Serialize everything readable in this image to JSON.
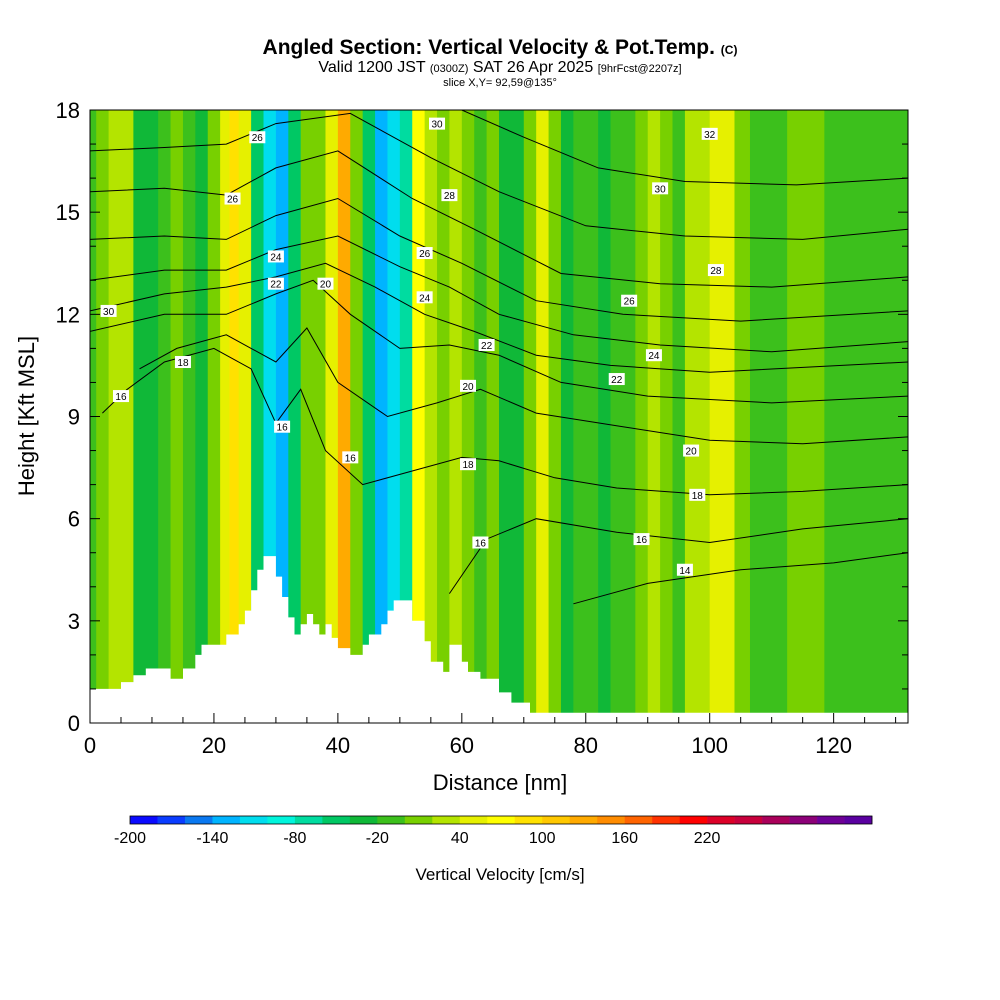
{
  "chart_data": {
    "type": "heatmap",
    "title": "Angled Section: Vertical Velocity & Pot.Temp.",
    "title_mark": "(C)",
    "subtitle_parts": [
      "Valid 1200 JST",
      "(0300Z)",
      "SAT 26 Apr 2025",
      "[9hrFcst@2207z]"
    ],
    "slice_label": "slice X,Y= 92,59@135°",
    "xlabel": "Distance [nm]",
    "ylabel": "Height [Kft MSL]",
    "xlim": [
      0,
      132
    ],
    "ylim": [
      0,
      18
    ],
    "x_ticks": [
      "0",
      "20",
      "40",
      "60",
      "80",
      "100",
      "120"
    ],
    "y_ticks": [
      "0",
      "3",
      "6",
      "9",
      "12",
      "15",
      "18"
    ],
    "colorbar": {
      "label": "Vertical Velocity [cm/s]",
      "tick_labels": [
        "-200",
        "-140",
        "-80",
        "-20",
        "40",
        "100",
        "160",
        "220"
      ],
      "colors": [
        "#0a0aff",
        "#0a3cff",
        "#0a78f0",
        "#00b4ff",
        "#00ddee",
        "#00f5dc",
        "#00dca0",
        "#00c864",
        "#10b838",
        "#3cc01c",
        "#78d000",
        "#b4e400",
        "#e6f000",
        "#ffff00",
        "#ffe100",
        "#ffc800",
        "#ffaa00",
        "#ff8c00",
        "#ff6400",
        "#ff3200",
        "#ff0000",
        "#dc0028",
        "#c8003c",
        "#aa005a",
        "#8c0078",
        "#6e0096",
        "#5a00a0"
      ]
    },
    "vertical_velocity_bands": [
      {
        "x": 0,
        "v": -10
      },
      {
        "x": 2,
        "v": 0
      },
      {
        "x": 4,
        "v": 20
      },
      {
        "x": 6,
        "v": 30
      },
      {
        "x": 8,
        "v": -30
      },
      {
        "x": 10,
        "v": -40
      },
      {
        "x": 12,
        "v": -20
      },
      {
        "x": 14,
        "v": 0
      },
      {
        "x": 16,
        "v": -10
      },
      {
        "x": 18,
        "v": -30
      },
      {
        "x": 20,
        "v": 10
      },
      {
        "x": 22,
        "v": 50
      },
      {
        "x": 23,
        "v": 90
      },
      {
        "x": 25,
        "v": 40
      },
      {
        "x": 27,
        "v": -50
      },
      {
        "x": 29,
        "v": -110
      },
      {
        "x": 31,
        "v": -130
      },
      {
        "x": 33,
        "v": -60
      },
      {
        "x": 35,
        "v": 10
      },
      {
        "x": 37,
        "v": 0
      },
      {
        "x": 39,
        "v": 40
      },
      {
        "x": 41,
        "v": 120
      },
      {
        "x": 43,
        "v": 10
      },
      {
        "x": 45,
        "v": -60
      },
      {
        "x": 47,
        "v": -130
      },
      {
        "x": 49,
        "v": -120
      },
      {
        "x": 51,
        "v": -70
      },
      {
        "x": 53,
        "v": 60
      },
      {
        "x": 55,
        "v": 30
      },
      {
        "x": 57,
        "v": 0
      },
      {
        "x": 59,
        "v": 30
      },
      {
        "x": 61,
        "v": 10
      },
      {
        "x": 63,
        "v": -10
      },
      {
        "x": 65,
        "v": 0
      },
      {
        "x": 67,
        "v": -30
      },
      {
        "x": 69,
        "v": -40
      },
      {
        "x": 71,
        "v": 10
      },
      {
        "x": 73,
        "v": 40
      },
      {
        "x": 75,
        "v": 0
      },
      {
        "x": 77,
        "v": -30
      },
      {
        "x": 79,
        "v": -20
      },
      {
        "x": 81,
        "v": -10
      },
      {
        "x": 83,
        "v": -30
      },
      {
        "x": 85,
        "v": -10
      },
      {
        "x": 87,
        "v": -20
      },
      {
        "x": 89,
        "v": 0
      },
      {
        "x": 91,
        "v": 20
      },
      {
        "x": 93,
        "v": 10
      },
      {
        "x": 95,
        "v": -10
      },
      {
        "x": 97,
        "v": 20
      },
      {
        "x": 99,
        "v": 30
      },
      {
        "x": 101,
        "v": 50
      },
      {
        "x": 103,
        "v": 40
      },
      {
        "x": 105,
        "v": 10
      },
      {
        "x": 108,
        "v": -10
      },
      {
        "x": 111,
        "v": -20
      },
      {
        "x": 114,
        "v": 0
      },
      {
        "x": 117,
        "v": 10
      },
      {
        "x": 120,
        "v": -10
      },
      {
        "x": 123,
        "v": -20
      },
      {
        "x": 126,
        "v": -10
      },
      {
        "x": 129,
        "v": -20
      },
      {
        "x": 132,
        "v": -10
      }
    ],
    "theta_contours": [
      {
        "label": "14",
        "points": [
          [
            78,
            3.5
          ],
          [
            90,
            4.1
          ],
          [
            105,
            4.5
          ],
          [
            120,
            4.7
          ],
          [
            132,
            5.0
          ]
        ]
      },
      {
        "label": "16",
        "points": [
          [
            58,
            3.8
          ],
          [
            64,
            5.4
          ],
          [
            72,
            6.0
          ],
          [
            85,
            5.6
          ],
          [
            100,
            5.3
          ],
          [
            115,
            5.7
          ],
          [
            132,
            6.0
          ]
        ]
      },
      {
        "label": "16",
        "points": [
          [
            2,
            9.1
          ],
          [
            6,
            9.8
          ],
          [
            12,
            10.6
          ],
          [
            20,
            11.0
          ],
          [
            26,
            10.4
          ],
          [
            30,
            8.8
          ],
          [
            34,
            9.8
          ],
          [
            38,
            8.0
          ],
          [
            44,
            7.0
          ],
          [
            52,
            7.4
          ],
          [
            60,
            7.8
          ],
          [
            66,
            7.7
          ],
          [
            75,
            7.2
          ],
          [
            85,
            6.9
          ],
          [
            100,
            6.7
          ],
          [
            115,
            6.8
          ],
          [
            132,
            7.0
          ]
        ]
      },
      {
        "label": "18",
        "points": [
          [
            8,
            10.4
          ],
          [
            14,
            11.0
          ],
          [
            22,
            11.4
          ],
          [
            30,
            10.6
          ],
          [
            35,
            11.6
          ],
          [
            40,
            10.0
          ],
          [
            48,
            9.0
          ],
          [
            56,
            9.4
          ],
          [
            63,
            9.8
          ],
          [
            72,
            9.1
          ],
          [
            86,
            8.7
          ],
          [
            100,
            8.3
          ],
          [
            115,
            8.2
          ],
          [
            132,
            8.4
          ]
        ]
      },
      {
        "label": "20",
        "points": [
          [
            0,
            11.5
          ],
          [
            12,
            12.0
          ],
          [
            22,
            12.0
          ],
          [
            30,
            12.6
          ],
          [
            36,
            13.0
          ],
          [
            42,
            12.0
          ],
          [
            50,
            11.0
          ],
          [
            58,
            11.1
          ],
          [
            66,
            10.8
          ],
          [
            76,
            10.0
          ],
          [
            90,
            9.6
          ],
          [
            110,
            9.4
          ],
          [
            132,
            9.6
          ]
        ]
      },
      {
        "label": "22",
        "points": [
          [
            0,
            12.1
          ],
          [
            12,
            12.6
          ],
          [
            22,
            12.8
          ],
          [
            30,
            13.1
          ],
          [
            38,
            13.5
          ],
          [
            46,
            12.8
          ],
          [
            54,
            12.0
          ],
          [
            62,
            11.5
          ],
          [
            72,
            10.8
          ],
          [
            84,
            10.5
          ],
          [
            100,
            10.3
          ],
          [
            132,
            10.6
          ]
        ]
      },
      {
        "label": "24",
        "points": [
          [
            0,
            13.0
          ],
          [
            12,
            13.3
          ],
          [
            22,
            13.3
          ],
          [
            30,
            13.9
          ],
          [
            40,
            14.3
          ],
          [
            50,
            13.4
          ],
          [
            58,
            12.8
          ],
          [
            66,
            12.0
          ],
          [
            78,
            11.4
          ],
          [
            92,
            11.1
          ],
          [
            110,
            10.9
          ],
          [
            132,
            11.2
          ]
        ]
      },
      {
        "label": "26",
        "points": [
          [
            0,
            14.2
          ],
          [
            12,
            14.3
          ],
          [
            22,
            14.2
          ],
          [
            30,
            14.9
          ],
          [
            40,
            15.4
          ],
          [
            50,
            14.3
          ],
          [
            60,
            13.5
          ],
          [
            72,
            12.4
          ],
          [
            86,
            12.0
          ],
          [
            105,
            11.8
          ],
          [
            132,
            12.1
          ]
        ]
      },
      {
        "label": "28",
        "points": [
          [
            0,
            15.6
          ],
          [
            12,
            15.7
          ],
          [
            22,
            15.5
          ],
          [
            30,
            16.3
          ],
          [
            40,
            16.8
          ],
          [
            52,
            15.4
          ],
          [
            62,
            14.5
          ],
          [
            76,
            13.2
          ],
          [
            92,
            12.9
          ],
          [
            110,
            12.8
          ],
          [
            132,
            13.1
          ]
        ]
      },
      {
        "label": "30",
        "points": [
          [
            0,
            16.8
          ],
          [
            12,
            16.9
          ],
          [
            22,
            17.0
          ],
          [
            30,
            17.6
          ],
          [
            42,
            17.9
          ],
          [
            55,
            16.6
          ],
          [
            66,
            15.6
          ],
          [
            80,
            14.6
          ],
          [
            96,
            14.3
          ],
          [
            115,
            14.2
          ],
          [
            132,
            14.5
          ]
        ]
      },
      {
        "label": "32",
        "points": [
          [
            60,
            18.0
          ],
          [
            70,
            17.2
          ],
          [
            82,
            16.3
          ],
          [
            96,
            15.9
          ],
          [
            114,
            15.8
          ],
          [
            132,
            16.0
          ]
        ]
      }
    ],
    "contour_labels": [
      {
        "text": "30",
        "x": 3,
        "y": 12.1
      },
      {
        "text": "18",
        "x": 15,
        "y": 10.6
      },
      {
        "text": "16",
        "x": 5,
        "y": 9.6
      },
      {
        "text": "26",
        "x": 27,
        "y": 17.2
      },
      {
        "text": "26",
        "x": 23,
        "y": 15.4
      },
      {
        "text": "24",
        "x": 30,
        "y": 13.7
      },
      {
        "text": "22",
        "x": 30,
        "y": 12.9
      },
      {
        "text": "20",
        "x": 38,
        "y": 12.9
      },
      {
        "text": "16",
        "x": 31,
        "y": 8.7
      },
      {
        "text": "16",
        "x": 42,
        "y": 7.8
      },
      {
        "text": "30",
        "x": 56,
        "y": 17.6
      },
      {
        "text": "28",
        "x": 58,
        "y": 15.5
      },
      {
        "text": "26",
        "x": 54,
        "y": 13.8
      },
      {
        "text": "24",
        "x": 54,
        "y": 12.5
      },
      {
        "text": "22",
        "x": 64,
        "y": 11.1
      },
      {
        "text": "20",
        "x": 61,
        "y": 9.9
      },
      {
        "text": "18",
        "x": 61,
        "y": 7.6
      },
      {
        "text": "16",
        "x": 63,
        "y": 5.3
      },
      {
        "text": "32",
        "x": 100,
        "y": 17.3
      },
      {
        "text": "30",
        "x": 92,
        "y": 15.7
      },
      {
        "text": "28",
        "x": 101,
        "y": 13.3
      },
      {
        "text": "26",
        "x": 87,
        "y": 12.4
      },
      {
        "text": "24",
        "x": 91,
        "y": 10.8
      },
      {
        "text": "22",
        "x": 85,
        "y": 10.1
      },
      {
        "text": "20",
        "x": 97,
        "y": 8.0
      },
      {
        "text": "18",
        "x": 98,
        "y": 6.7
      },
      {
        "text": "16",
        "x": 89,
        "y": 5.4
      },
      {
        "text": "14",
        "x": 96,
        "y": 4.5
      }
    ],
    "terrain": [
      [
        0,
        1.0
      ],
      [
        5,
        1.0
      ],
      [
        5,
        1.2
      ],
      [
        7,
        1.2
      ],
      [
        7,
        1.4
      ],
      [
        9,
        1.4
      ],
      [
        9,
        1.6
      ],
      [
        13,
        1.6
      ],
      [
        13,
        1.3
      ],
      [
        15,
        1.3
      ],
      [
        15,
        1.6
      ],
      [
        17,
        1.6
      ],
      [
        17,
        2.0
      ],
      [
        18,
        2.0
      ],
      [
        18,
        2.3
      ],
      [
        22,
        2.3
      ],
      [
        22,
        2.6
      ],
      [
        24,
        2.6
      ],
      [
        24,
        2.9
      ],
      [
        25,
        2.9
      ],
      [
        25,
        3.3
      ],
      [
        26,
        3.3
      ],
      [
        26,
        3.9
      ],
      [
        27,
        3.9
      ],
      [
        27,
        4.5
      ],
      [
        28,
        4.5
      ],
      [
        28,
        4.9
      ],
      [
        30,
        4.9
      ],
      [
        30,
        4.3
      ],
      [
        31,
        4.3
      ],
      [
        31,
        3.7
      ],
      [
        32,
        3.7
      ],
      [
        32,
        3.1
      ],
      [
        33,
        3.1
      ],
      [
        33,
        2.6
      ],
      [
        34,
        2.6
      ],
      [
        34,
        2.9
      ],
      [
        35,
        2.9
      ],
      [
        35,
        3.2
      ],
      [
        36,
        3.2
      ],
      [
        36,
        2.9
      ],
      [
        37,
        2.9
      ],
      [
        37,
        2.6
      ],
      [
        38,
        2.6
      ],
      [
        38,
        2.9
      ],
      [
        39,
        2.9
      ],
      [
        39,
        2.5
      ],
      [
        40,
        2.5
      ],
      [
        40,
        2.2
      ],
      [
        42,
        2.2
      ],
      [
        42,
        2.0
      ],
      [
        44,
        2.0
      ],
      [
        44,
        2.3
      ],
      [
        45,
        2.3
      ],
      [
        45,
        2.6
      ],
      [
        47,
        2.6
      ],
      [
        47,
        2.9
      ],
      [
        48,
        2.9
      ],
      [
        48,
        3.3
      ],
      [
        49,
        3.3
      ],
      [
        49,
        3.6
      ],
      [
        52,
        3.6
      ],
      [
        52,
        3.0
      ],
      [
        54,
        3.0
      ],
      [
        54,
        2.4
      ],
      [
        55,
        2.4
      ],
      [
        55,
        1.8
      ],
      [
        57,
        1.8
      ],
      [
        57,
        1.5
      ],
      [
        58,
        1.5
      ],
      [
        58,
        2.3
      ],
      [
        60,
        2.3
      ],
      [
        60,
        1.8
      ],
      [
        61,
        1.8
      ],
      [
        61,
        1.5
      ],
      [
        63,
        1.5
      ],
      [
        63,
        1.3
      ],
      [
        66,
        1.3
      ],
      [
        66,
        0.9
      ],
      [
        68,
        0.9
      ],
      [
        68,
        0.6
      ],
      [
        71,
        0.6
      ],
      [
        71,
        0.3
      ],
      [
        132,
        0.3
      ]
    ]
  }
}
